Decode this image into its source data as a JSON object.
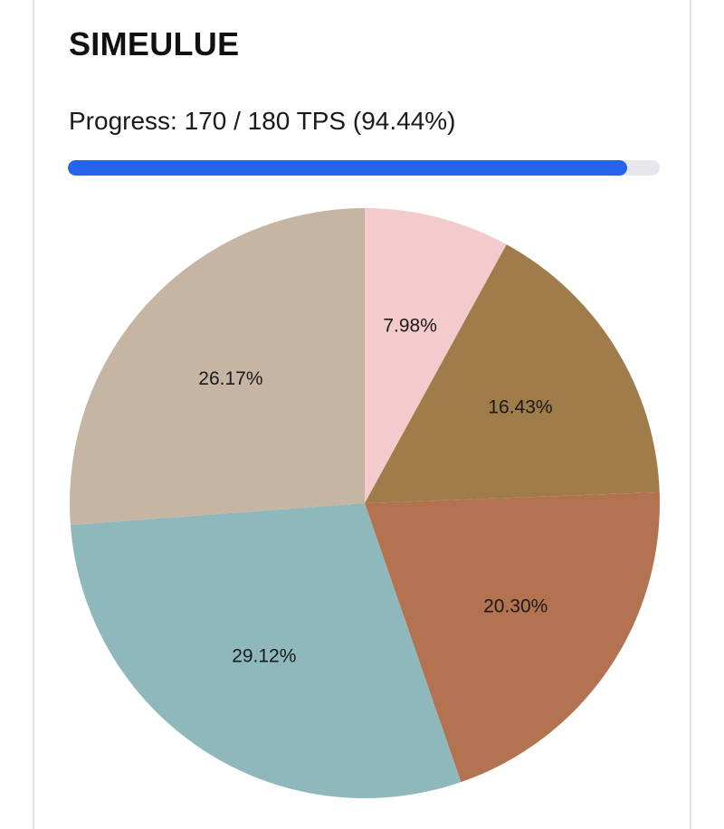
{
  "card": {
    "title": "SIMEULUE",
    "progress_text": "Progress: 170 / 180 TPS (94.44%)",
    "progress_current": 170,
    "progress_total": 180,
    "progress_percent": 94.44
  },
  "colors": {
    "progress_fill": "#2563eb",
    "progress_track": "#e5e7eb",
    "label_text": "#1a1a1a"
  },
  "chart_data": {
    "type": "pie",
    "start_angle_deg": 0,
    "direction": "clockwise",
    "slices": [
      {
        "label": "7.98%",
        "value": 7.98,
        "color": "#f3cbcd"
      },
      {
        "label": "16.43%",
        "value": 16.43,
        "color": "#a07c4b"
      },
      {
        "label": "20.30%",
        "value": 20.3,
        "color": "#b47350"
      },
      {
        "label": "29.12%",
        "value": 29.12,
        "color": "#8fb8bd"
      },
      {
        "label": "26.17%",
        "value": 26.17,
        "color": "#c6b5a3"
      }
    ]
  }
}
